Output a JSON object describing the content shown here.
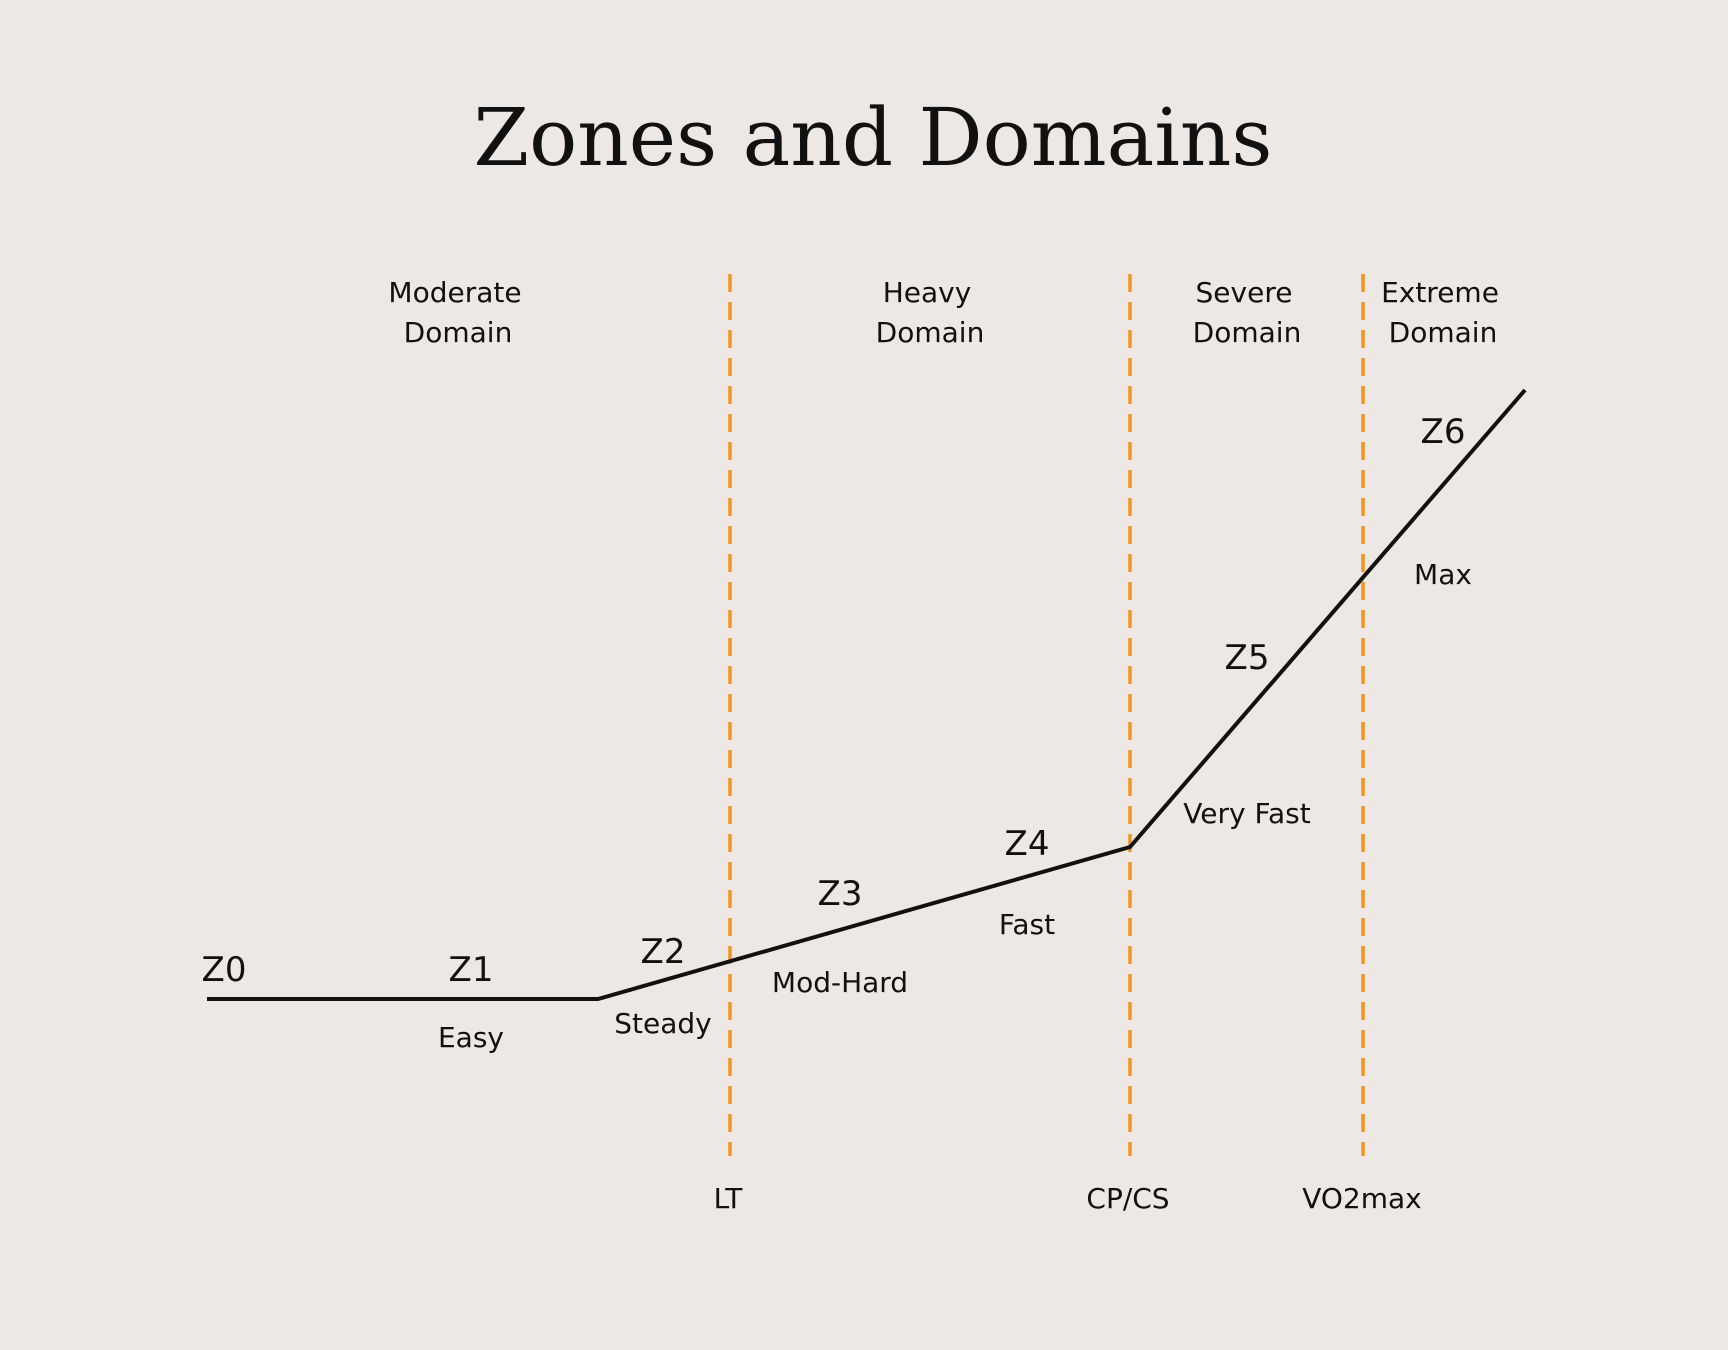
{
  "title": "Zones and Domains",
  "colors": {
    "background": "#ede8e4",
    "threshold": "#f2941f",
    "curve": "#111111",
    "text": "#111111"
  },
  "domains": [
    {
      "line1": "Moderate",
      "line2": "Domain"
    },
    {
      "line1": "Heavy",
      "line2": "Domain"
    },
    {
      "line1": "Severe",
      "line2": "Domain"
    },
    {
      "line1": "Extreme",
      "line2": "Domain"
    }
  ],
  "thresholds": [
    {
      "label": "LT"
    },
    {
      "label": "CP/CS"
    },
    {
      "label": "VO2max"
    }
  ],
  "zones": [
    {
      "zone": "Z0",
      "effort": ""
    },
    {
      "zone": "Z1",
      "effort": "Easy"
    },
    {
      "zone": "Z2",
      "effort": "Steady"
    },
    {
      "zone": "Z3",
      "effort": "Mod-Hard"
    },
    {
      "zone": "Z4",
      "effort": "Fast"
    },
    {
      "zone": "Z5",
      "effort": "Very Fast"
    },
    {
      "zone": "Z6",
      "effort": "Max"
    }
  ]
}
